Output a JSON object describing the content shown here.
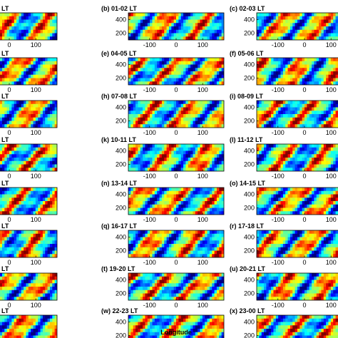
{
  "chart_data": {
    "type": "heatmap",
    "colormap": "jet",
    "xlabel": "Longitude",
    "x_ticks": [
      "-100",
      "0",
      "100"
    ],
    "x_tick_values": [
      -100,
      0,
      100
    ],
    "x_range": [
      -180,
      180
    ],
    "y_ticks": [
      "400",
      "200"
    ],
    "y_tick_values": [
      400,
      200
    ],
    "y_range": [
      100,
      500
    ],
    "layout": "8 rows x 3 columns",
    "panels": [
      {
        "label": "LT"
      },
      {
        "label": "(b) 01-02 LT"
      },
      {
        "label": "(c) 02-03 LT"
      },
      {
        "label": "LT"
      },
      {
        "label": "(e) 04-05 LT"
      },
      {
        "label": "(f) 05-06 LT"
      },
      {
        "label": "LT"
      },
      {
        "label": "(h) 07-08 LT"
      },
      {
        "label": "(i) 08-09 LT"
      },
      {
        "label": "LT"
      },
      {
        "label": "(k) 10-11 LT"
      },
      {
        "label": "(l) 11-12 LT"
      },
      {
        "label": "LT"
      },
      {
        "label": "(n) 13-14 LT"
      },
      {
        "label": "(o) 14-15 LT"
      },
      {
        "label": "LT"
      },
      {
        "label": "(q) 16-17 LT"
      },
      {
        "label": "(r) 17-18 LT"
      },
      {
        "label": "LT"
      },
      {
        "label": "(t) 19-20 LT"
      },
      {
        "label": "(u) 20-21 LT"
      },
      {
        "label": "LT"
      },
      {
        "label": "(w) 22-23 LT"
      },
      {
        "label": "(x) 23-00 LT"
      }
    ]
  }
}
